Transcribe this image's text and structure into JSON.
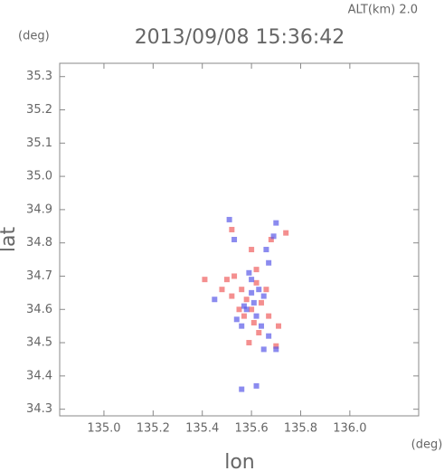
{
  "chart_data": {
    "type": "scatter",
    "annotation": "ALT(km) 2.0",
    "title": "2013/09/08 15:36:42",
    "y_unit": "(deg)",
    "x_unit": "(deg)",
    "ylabel": "lat",
    "xlabel": "lon",
    "xlim": [
      134.82,
      136.28
    ],
    "ylim": [
      34.28,
      35.34
    ],
    "xticks": [
      {
        "value": 135,
        "label": "135.0"
      },
      135.2,
      135.4,
      135.6,
      135.8,
      {
        "value": 136,
        "label": "136.0"
      }
    ],
    "yticks": [
      34.3,
      34.4,
      34.5,
      34.6,
      34.7,
      34.8,
      34.9,
      {
        "value": 35,
        "label": "35.0"
      },
      35.1,
      35.2,
      35.3
    ],
    "series": [
      {
        "color": "#ef6060",
        "x": [
          135.5,
          135.53,
          135.56,
          135.52,
          135.58,
          135.6,
          135.57,
          135.61,
          135.63,
          135.59,
          135.64,
          135.66,
          135.48,
          135.41,
          135.62,
          135.68,
          135.6,
          135.71,
          135.67,
          135.55,
          135.7,
          135.52,
          135.74,
          135.62
        ],
        "values": [
          34.69,
          34.7,
          34.66,
          34.64,
          34.63,
          34.6,
          34.58,
          34.56,
          34.53,
          34.5,
          34.62,
          34.66,
          34.66,
          34.69,
          34.72,
          34.81,
          34.78,
          34.55,
          34.58,
          34.6,
          34.49,
          34.84,
          34.83,
          34.68
        ]
      },
      {
        "color": "#5a5ae8",
        "x": [
          135.6,
          135.63,
          135.58,
          135.61,
          135.56,
          135.65,
          135.62,
          135.67,
          135.65,
          135.7,
          135.69,
          135.7,
          135.66,
          135.51,
          135.53,
          135.57,
          135.54,
          135.6,
          135.67,
          135.45,
          135.56,
          135.62,
          135.59,
          135.64
        ],
        "values": [
          34.65,
          34.66,
          34.6,
          34.62,
          34.55,
          34.64,
          34.58,
          34.52,
          34.48,
          34.48,
          34.82,
          34.86,
          34.78,
          34.87,
          34.81,
          34.61,
          34.57,
          34.69,
          34.74,
          34.63,
          34.36,
          34.37,
          34.71,
          34.55
        ]
      }
    ]
  }
}
